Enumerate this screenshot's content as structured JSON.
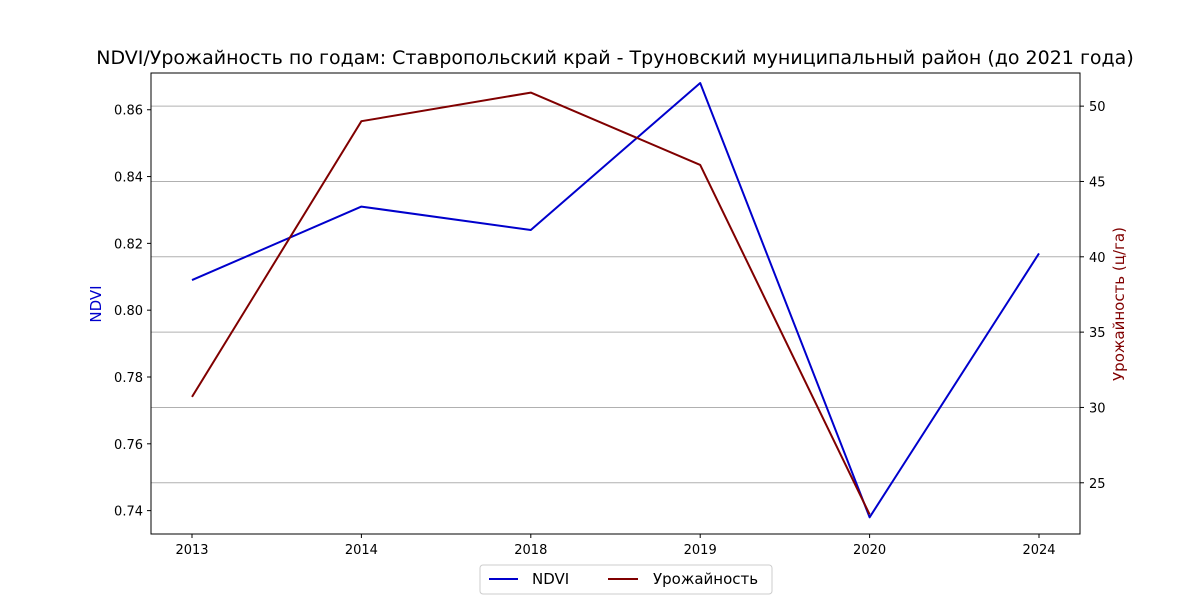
{
  "chart_data": {
    "type": "line",
    "title": "NDVI/Урожайность по годам: Ставропольский край - Труновский муниципальный район (до 2021 года)",
    "xlabel": "",
    "categories": [
      "2013",
      "2014",
      "2018",
      "2019",
      "2020",
      "2024"
    ],
    "y_left": {
      "label": "NDVI",
      "color": "#0000cc",
      "lim": [
        0.733,
        0.871
      ],
      "ticks": [
        0.74,
        0.76,
        0.78,
        0.8,
        0.82,
        0.84,
        0.86
      ],
      "tick_labels": [
        "0.74",
        "0.76",
        "0.78",
        "0.80",
        "0.82",
        "0.84",
        "0.86"
      ]
    },
    "y_right": {
      "label": "Урожайность (ц/га)",
      "color": "#800000",
      "lim": [
        21.6,
        52.2
      ],
      "ticks": [
        25,
        30,
        35,
        40,
        45,
        50
      ],
      "tick_labels": [
        "25",
        "30",
        "35",
        "40",
        "45",
        "50"
      ]
    },
    "series": [
      {
        "name": "NDVI",
        "axis": "left",
        "color": "#0000cc",
        "values": [
          0.809,
          0.831,
          0.824,
          0.868,
          0.738,
          0.817
        ]
      },
      {
        "name": "Урожайность",
        "axis": "right",
        "color": "#800000",
        "values": [
          30.7,
          49.0,
          50.9,
          46.1,
          22.9,
          null
        ]
      }
    ],
    "grid": "horizontal (right axis)",
    "legend": "bottom-center"
  }
}
